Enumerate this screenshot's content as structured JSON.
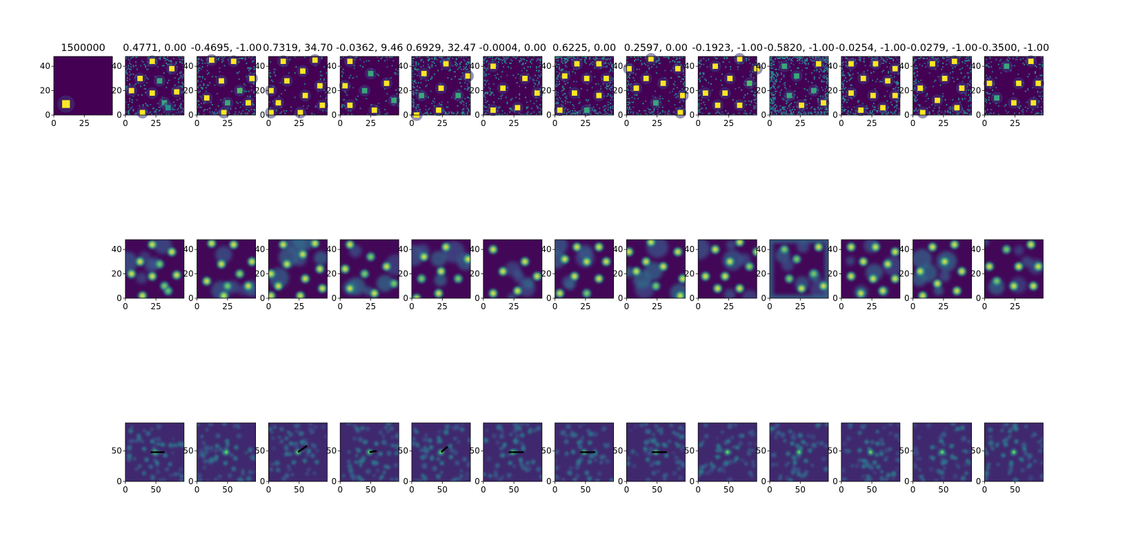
{
  "figure": {
    "colormap": [
      "#440154",
      "#3b528b",
      "#21918c",
      "#5ec962",
      "#fde725"
    ],
    "axes_frame_color": "#000000"
  },
  "chart_data": [
    {
      "type": "heatmap",
      "row": 1,
      "description_kind": "grid-cell rate maps",
      "titles": [
        "1500000",
        "0.4771, 0.00",
        "-0.4695, -1.00",
        "0.7319, 34.70",
        "-0.0362, 9.46",
        "0.6929, 32.47",
        "-0.0004, 0.00",
        "0.6225, 0.00",
        "0.2597, 0.00",
        "-0.1923, -1.00",
        "-0.5820, -1.00",
        "-0.0254, -1.00",
        "-0.0279, -1.00",
        "-0.3500, -1.00"
      ],
      "xlim": [
        0,
        48
      ],
      "ylim": [
        0,
        48
      ],
      "xticks": [
        0,
        25
      ],
      "yticks": [
        0,
        20,
        40
      ],
      "panels": [
        {
          "kind": "blob",
          "fields": [
            [
              10,
              9,
              3.2,
              1.0
            ]
          ],
          "noise": 0
        },
        {
          "kind": "binary",
          "fields": [
            [
              22,
              44,
              2.2,
              1
            ],
            [
              38,
              38,
              2.2,
              1
            ],
            [
              12,
              30,
              2.2,
              1
            ],
            [
              28,
              28,
              2.2,
              0.6
            ],
            [
              5,
              20,
              2.2,
              1
            ],
            [
              22,
              18,
              2.2,
              1
            ],
            [
              42,
              19,
              2.2,
              1
            ],
            [
              32,
              10,
              2.2,
              0.6
            ],
            [
              14,
              2,
              2.2,
              1
            ],
            [
              35,
              6,
              2.2,
              0.5
            ]
          ],
          "noise": 0.25
        },
        {
          "kind": "binary",
          "fields": [
            [
              12,
              45,
              2.2,
              1
            ],
            [
              30,
              44,
              2.2,
              1
            ],
            [
              45,
              30,
              2.2,
              1
            ],
            [
              20,
              28,
              2.2,
              1
            ],
            [
              35,
              20,
              2.2,
              0.7
            ],
            [
              8,
              14,
              2.2,
              1
            ],
            [
              25,
              10,
              2.2,
              0.6
            ],
            [
              42,
              10,
              2.2,
              1
            ],
            [
              22,
              2,
              2.2,
              1
            ]
          ],
          "noise": 0.25
        },
        {
          "kind": "binary",
          "fields": [
            [
              12,
              44,
              2.2,
              1
            ],
            [
              38,
              45,
              2.2,
              1
            ],
            [
              28,
              36,
              2.2,
              1
            ],
            [
              15,
              28,
              2.2,
              1
            ],
            [
              42,
              24,
              2.2,
              1
            ],
            [
              2,
              20,
              2.2,
              1
            ],
            [
              30,
              16,
              2.2,
              1
            ],
            [
              8,
              10,
              2.2,
              1
            ],
            [
              44,
              8,
              2.2,
              1
            ],
            [
              2,
              2,
              2.2,
              1
            ],
            [
              26,
              2,
              2.2,
              1
            ]
          ],
          "noise": 0.1
        },
        {
          "kind": "binary",
          "fields": [
            [
              8,
              44,
              2.2,
              1
            ],
            [
              25,
              34,
              2.2,
              0.6
            ],
            [
              4,
              24,
              2.2,
              1
            ],
            [
              20,
              20,
              2.2,
              0.6
            ],
            [
              38,
              26,
              2.2,
              1
            ],
            [
              8,
              8,
              2.2,
              1
            ],
            [
              28,
              4,
              2.2,
              1
            ],
            [
              44,
              12,
              2.2,
              0.6
            ]
          ],
          "noise": 0.12
        },
        {
          "kind": "binary",
          "fields": [
            [
              28,
              42,
              2.2,
              1
            ],
            [
              10,
              34,
              2.2,
              1
            ],
            [
              46,
              32,
              2.2,
              1
            ],
            [
              24,
              22,
              2.2,
              1
            ],
            [
              8,
              16,
              2.2,
              0.6
            ],
            [
              38,
              16,
              2.2,
              0.6
            ],
            [
              4,
              0,
              2.2,
              1
            ],
            [
              22,
              4,
              2.2,
              1
            ]
          ],
          "noise": 0.3
        },
        {
          "kind": "binary",
          "fields": [
            [
              8,
              40,
              2.2,
              1
            ],
            [
              34,
              30,
              2.2,
              1
            ],
            [
              16,
              22,
              2.2,
              1
            ],
            [
              44,
              18,
              2.2,
              1
            ],
            [
              8,
              4,
              2.2,
              1
            ],
            [
              28,
              6,
              2.2,
              1
            ]
          ],
          "noise": 0.25
        },
        {
          "kind": "binary",
          "fields": [
            [
              18,
              42,
              2.2,
              1
            ],
            [
              36,
              42,
              2.2,
              1
            ],
            [
              8,
              32,
              2.2,
              1
            ],
            [
              26,
              30,
              2.2,
              1
            ],
            [
              42,
              30,
              2.2,
              1
            ],
            [
              16,
              18,
              2.2,
              1
            ],
            [
              36,
              16,
              2.2,
              1
            ],
            [
              4,
              4,
              2.2,
              1
            ],
            [
              26,
              4,
              2.2,
              0.6
            ]
          ],
          "noise": 0.4
        },
        {
          "kind": "binary",
          "fields": [
            [
              20,
              46,
              2.2,
              1
            ],
            [
              2,
              38,
              2.2,
              1
            ],
            [
              42,
              38,
              2.2,
              1
            ],
            [
              16,
              30,
              2.2,
              1
            ],
            [
              30,
              26,
              2.2,
              1
            ],
            [
              8,
              22,
              2.2,
              1
            ],
            [
              46,
              16,
              2.2,
              1
            ],
            [
              24,
              10,
              2.2,
              0.6
            ],
            [
              44,
              2,
              2.2,
              1
            ]
          ],
          "noise": 0.3
        },
        {
          "kind": "binary",
          "fields": [
            [
              34,
              46,
              2.2,
              1
            ],
            [
              14,
              40,
              2.2,
              1
            ],
            [
              48,
              38,
              2.2,
              1
            ],
            [
              26,
              30,
              2.2,
              1
            ],
            [
              42,
              26,
              2.2,
              0.7
            ],
            [
              6,
              18,
              2.2,
              1
            ],
            [
              22,
              18,
              2.2,
              1
            ],
            [
              34,
              8,
              2.2,
              1
            ],
            [
              16,
              8,
              2.2,
              1
            ]
          ],
          "noise": 0.2
        },
        {
          "kind": "binary",
          "fields": [
            [
              12,
              40,
              2.2,
              0.6
            ],
            [
              40,
              42,
              2.2,
              1
            ],
            [
              22,
              32,
              2.2,
              0.6
            ],
            [
              36,
              20,
              2.2,
              0.6
            ],
            [
              16,
              16,
              2.2,
              0.6
            ],
            [
              26,
              8,
              2.2,
              1
            ],
            [
              44,
              10,
              2.2,
              1
            ]
          ],
          "noise": 0.55
        },
        {
          "kind": "binary",
          "fields": [
            [
              8,
              42,
              2.2,
              1
            ],
            [
              28,
              42,
              2.2,
              1
            ],
            [
              44,
              38,
              2.2,
              1
            ],
            [
              18,
              30,
              2.2,
              1
            ],
            [
              38,
              28,
              2.2,
              1
            ],
            [
              8,
              18,
              2.2,
              1
            ],
            [
              26,
              16,
              2.2,
              1
            ],
            [
              44,
              16,
              2.2,
              1
            ],
            [
              16,
              4,
              2.2,
              1
            ],
            [
              34,
              6,
              2.2,
              1
            ]
          ],
          "noise": 0.3
        },
        {
          "kind": "binary",
          "fields": [
            [
              16,
              42,
              2.2,
              1
            ],
            [
              34,
              44,
              2.2,
              1
            ],
            [
              26,
              30,
              2.2,
              1
            ],
            [
              6,
              22,
              2.2,
              1
            ],
            [
              40,
              22,
              2.2,
              1
            ],
            [
              20,
              12,
              2.2,
              1
            ],
            [
              36,
              6,
              2.2,
              1
            ],
            [
              8,
              2,
              2.2,
              1
            ]
          ],
          "noise": 0.3
        },
        {
          "kind": "binary",
          "fields": [
            [
              18,
              40,
              2.2,
              0.6
            ],
            [
              38,
              44,
              2.2,
              1
            ],
            [
              4,
              26,
              2.2,
              1
            ],
            [
              28,
              26,
              2.2,
              1
            ],
            [
              44,
              26,
              2.2,
              1
            ],
            [
              10,
              14,
              2.2,
              0.6
            ],
            [
              24,
              10,
              2.2,
              1
            ],
            [
              40,
              10,
              2.2,
              1
            ]
          ],
          "noise": 0.2
        }
      ]
    },
    {
      "type": "heatmap",
      "row": 2,
      "description_kind": "smoothed rate maps",
      "xlim": [
        0,
        48
      ],
      "ylim": [
        0,
        48
      ],
      "xticks": [
        0,
        25
      ],
      "yticks": [
        0,
        20,
        40
      ],
      "empty_first_column": true
    },
    {
      "type": "heatmap",
      "row": 3,
      "description_kind": "spatial autocorrelograms",
      "xlim": [
        0,
        96
      ],
      "ylim": [
        0,
        96
      ],
      "xticks": [
        0,
        50
      ],
      "yticks": [
        0,
        50
      ],
      "empty_first_column": true,
      "orientation_bars": [
        {
          "angle_deg": 0,
          "length": 16
        },
        null,
        {
          "angle_deg": 35,
          "length": 18
        },
        {
          "angle_deg": 10,
          "length": 12
        },
        {
          "angle_deg": 40,
          "length": 14
        },
        {
          "angle_deg": 0,
          "length": 18
        },
        {
          "angle_deg": 0,
          "length": 18
        },
        {
          "angle_deg": 0,
          "length": 18
        },
        null,
        null,
        null,
        null,
        null
      ]
    }
  ]
}
